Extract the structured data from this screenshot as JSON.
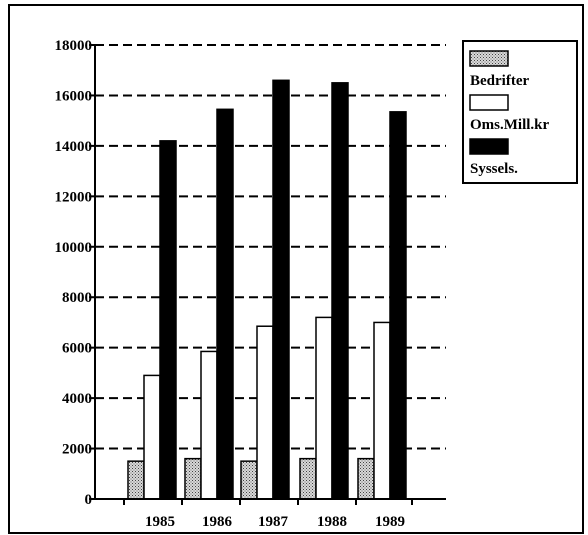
{
  "chart_data": {
    "type": "bar",
    "categories": [
      "1985",
      "1986",
      "1987",
      "1988",
      "1989"
    ],
    "series": [
      {
        "name": "Bedrifter",
        "values": [
          1500,
          1600,
          1500,
          1600,
          1600
        ],
        "fill": "pattern-stipple"
      },
      {
        "name": "Oms.Mill.kr",
        "values": [
          4900,
          5850,
          6850,
          7200,
          7000
        ],
        "fill": "#ffffff"
      },
      {
        "name": "Syssels.",
        "values": [
          14200,
          15450,
          16600,
          16500,
          15350
        ],
        "fill": "#000000"
      }
    ],
    "yticks": [
      "0",
      "2000",
      "4000",
      "6000",
      "8000",
      "10000",
      "12000",
      "14000",
      "16000",
      "18000"
    ],
    "ylim": [
      0,
      18000
    ],
    "title": "",
    "xlabel": "",
    "ylabel": "",
    "grid": "horizontal dashed",
    "legend_position": "top-right"
  }
}
